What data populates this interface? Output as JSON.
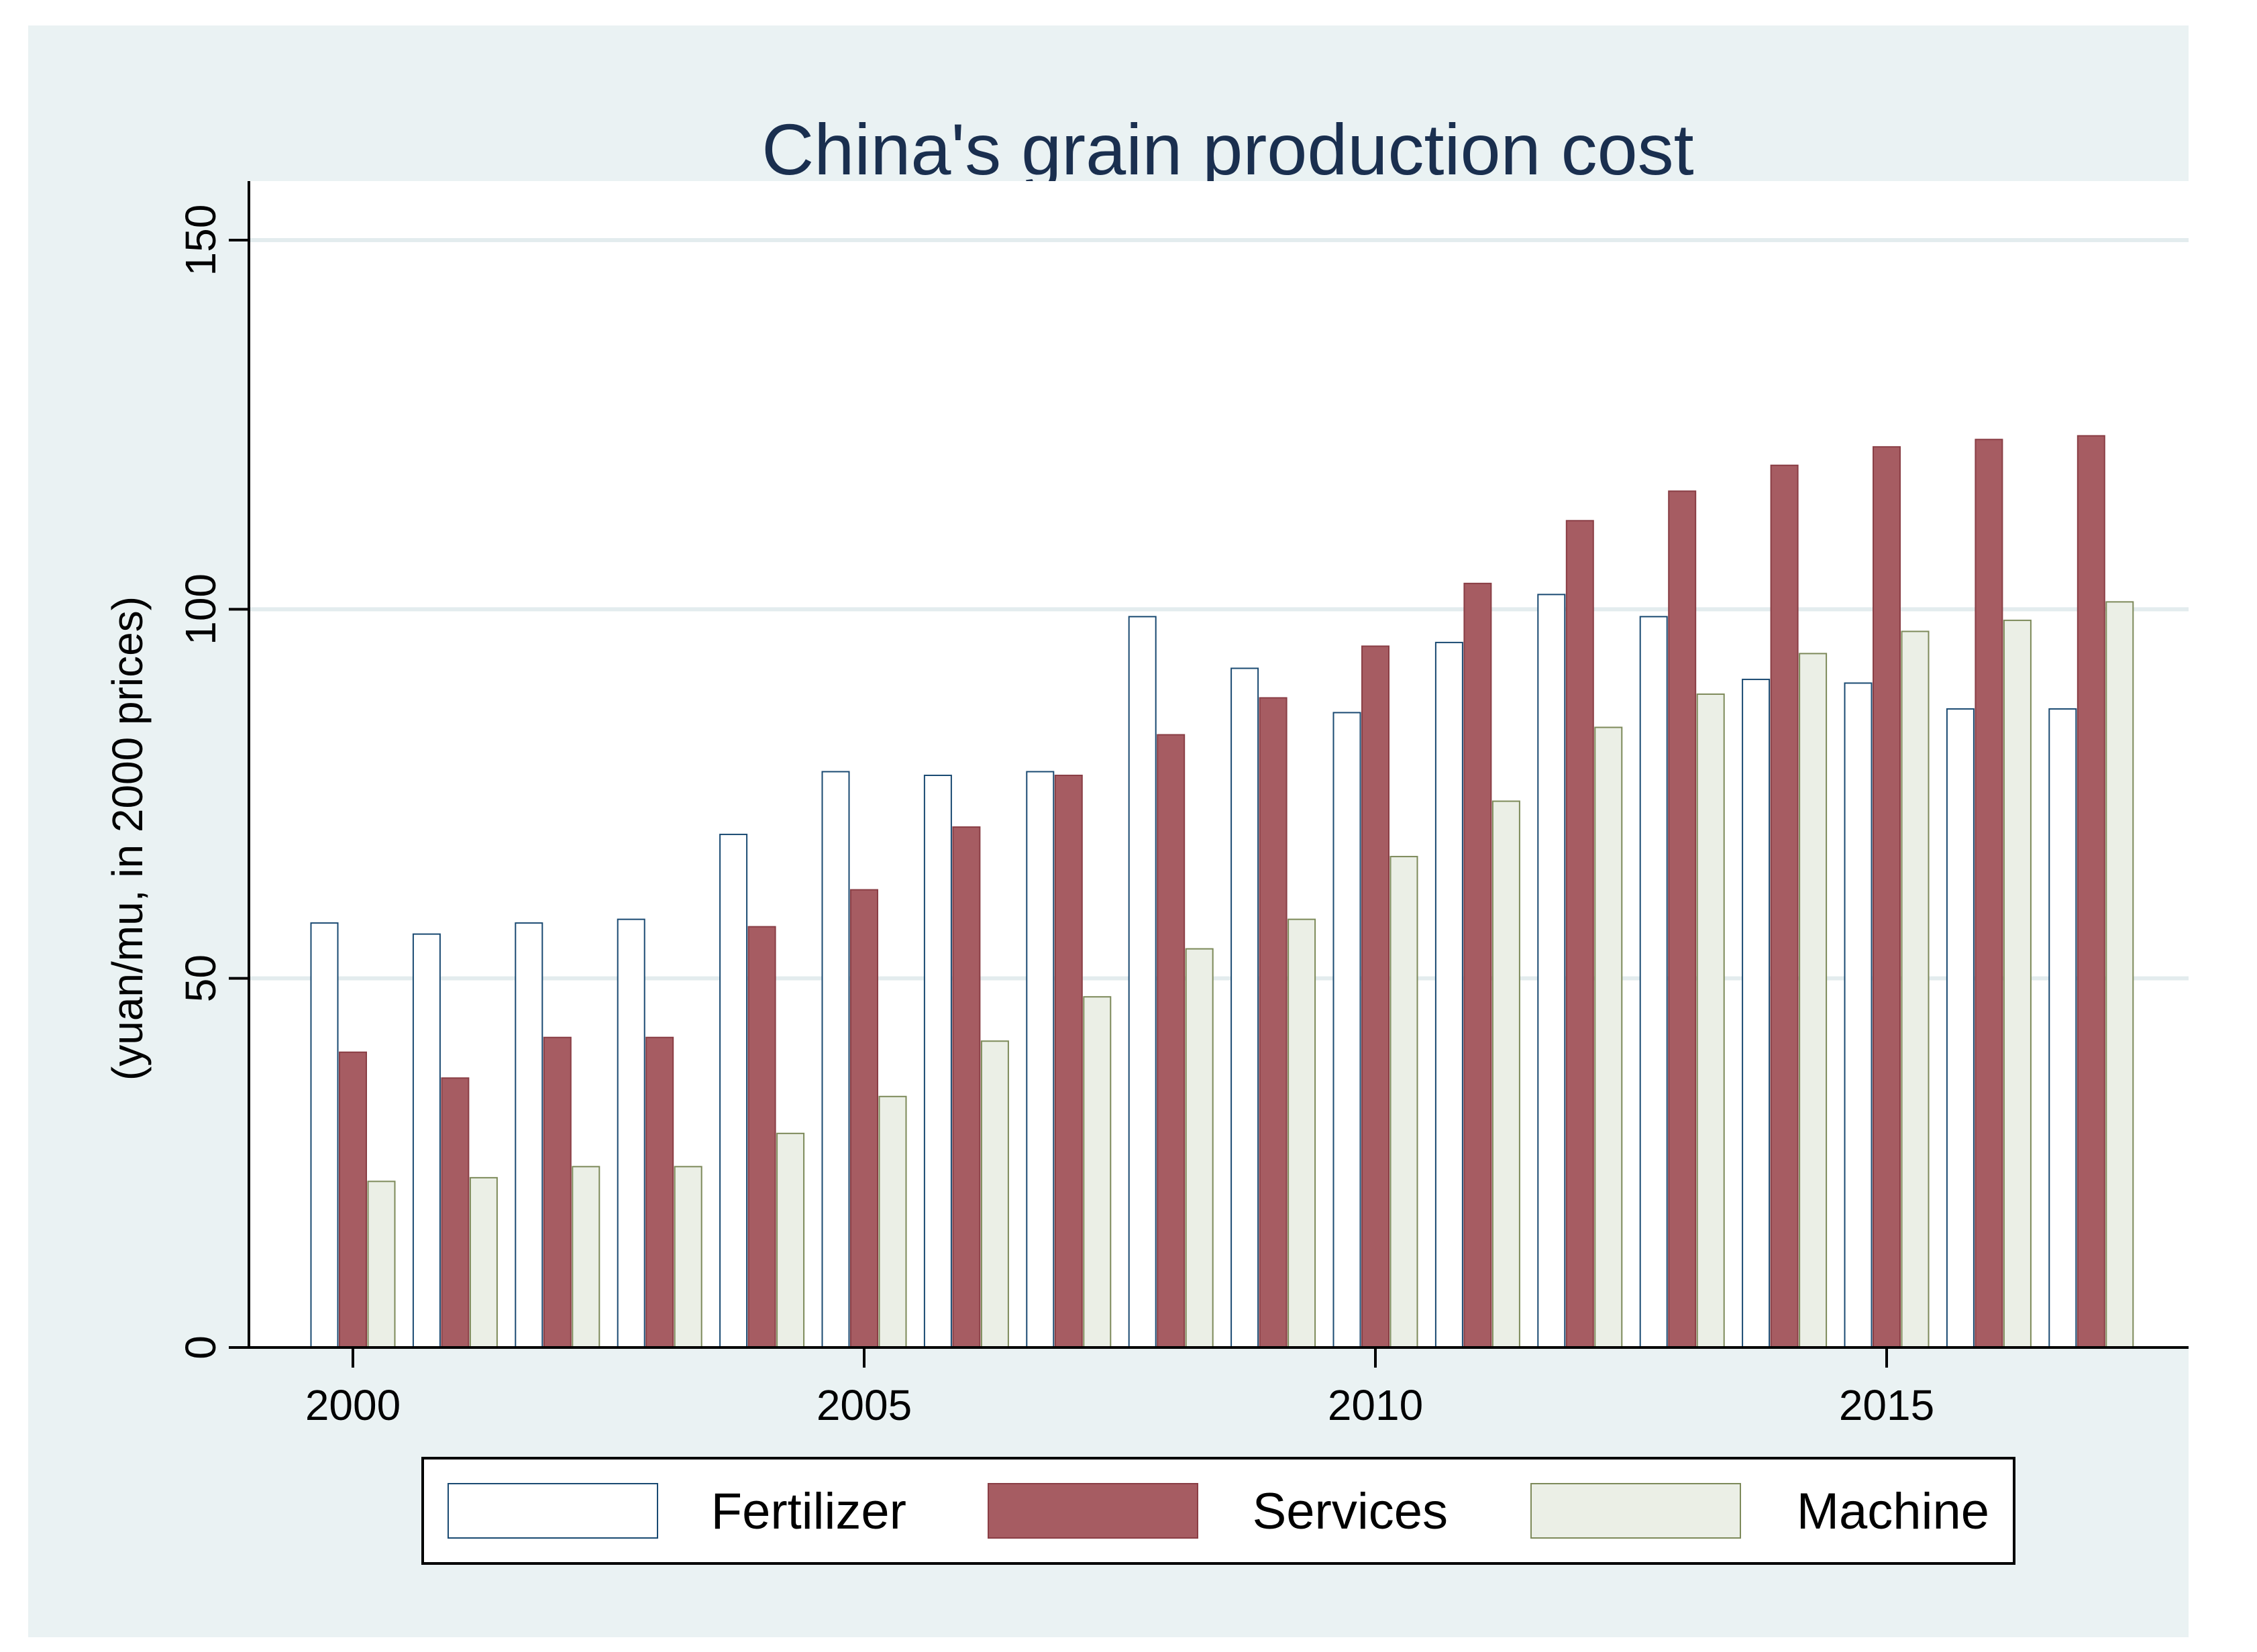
{
  "chart_data": {
    "type": "bar",
    "title": "China's grain production cost",
    "xlabel": "",
    "ylabel": "(yuan/mu, in 2000 prices)",
    "ylim": [
      0,
      158
    ],
    "yticks": [
      0,
      50,
      100,
      150
    ],
    "xticks": [
      2000,
      2005,
      2010,
      2015
    ],
    "grid": true,
    "legend_position": "bottom",
    "categories": [
      2000,
      2001,
      2002,
      2003,
      2004,
      2005,
      2006,
      2007,
      2008,
      2009,
      2010,
      2011,
      2012,
      2013,
      2014,
      2015,
      2016,
      2017
    ],
    "series": [
      {
        "name": "Fertilizer",
        "color": "#ffffff",
        "stroke": "#1a4a72",
        "values": [
          57.5,
          56,
          57.5,
          58,
          69.5,
          78,
          77.5,
          78,
          99,
          92,
          86,
          95.5,
          102,
          99,
          90.5,
          90,
          86.5,
          86.5
        ]
      },
      {
        "name": "Services",
        "color": "#a65c62",
        "stroke": "#8a3e45",
        "values": [
          40,
          36.5,
          42,
          42,
          57,
          62,
          70.5,
          77.5,
          83,
          88,
          95,
          103.5,
          112,
          116,
          119.5,
          122,
          123,
          123.5
        ]
      },
      {
        "name": "Machine",
        "color": "#ebefe6",
        "stroke": "#7d8a5a",
        "values": [
          22.5,
          23,
          24.5,
          24.5,
          29,
          34,
          41.5,
          47.5,
          54,
          58,
          66.5,
          74,
          84,
          88.5,
          94,
          97,
          98.5,
          101
        ]
      }
    ]
  }
}
